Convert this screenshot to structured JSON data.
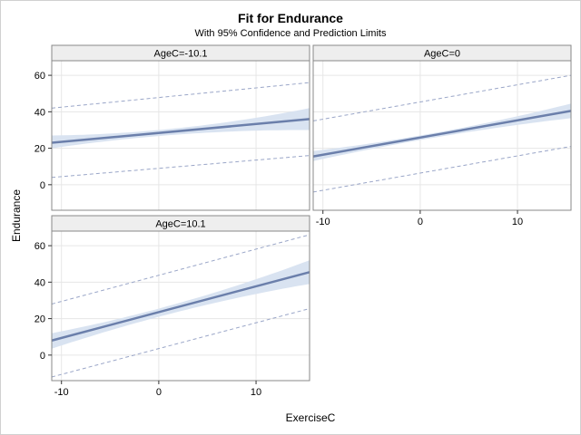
{
  "chart_data": {
    "type": "line",
    "title": "Fit for Endurance",
    "subtitle": "With 95% Confidence and Prediction Limits",
    "xlabel": "ExerciseC",
    "ylabel": "Endurance",
    "xlim": [
      -11,
      15.5
    ],
    "ylim": [
      -14,
      68
    ],
    "x_ticks": [
      -10,
      0,
      10
    ],
    "y_ticks": [
      0,
      20,
      40,
      60
    ],
    "grid": true,
    "colors": {
      "fit": "#6b7fab",
      "confidence_band": "#d9e3f1",
      "prediction_limit": "#9aa6c8",
      "grid": "#e6e6e6",
      "frame": "#888888",
      "panel_header": "#eeeeee"
    },
    "panels": [
      {
        "label": "AgeC=-10.1",
        "fit": {
          "x": [
            -11,
            15.5
          ],
          "y": [
            23,
            36
          ]
        },
        "confidence_lower": {
          "x": [
            -11,
            0,
            15.5
          ],
          "y": [
            20,
            26.7,
            30
          ]
        },
        "confidence_upper": {
          "x": [
            -11,
            0,
            15.5
          ],
          "y": [
            27,
            30,
            42
          ]
        },
        "prediction_lower": {
          "x": [
            -11,
            15.5
          ],
          "y": [
            4,
            16
          ]
        },
        "prediction_upper": {
          "x": [
            -11,
            15.5
          ],
          "y": [
            42,
            56
          ]
        }
      },
      {
        "label": "AgeC=0",
        "fit": {
          "x": [
            -11,
            15.5
          ],
          "y": [
            15.5,
            40.5
          ]
        },
        "confidence_lower": {
          "x": [
            -11,
            0,
            15.5
          ],
          "y": [
            13,
            24.5,
            36.5
          ]
        },
        "confidence_upper": {
          "x": [
            -11,
            0,
            15.5
          ],
          "y": [
            18.5,
            27,
            44.5
          ]
        },
        "prediction_lower": {
          "x": [
            -11,
            15.5
          ],
          "y": [
            -4,
            21
          ]
        },
        "prediction_upper": {
          "x": [
            -11,
            15.5
          ],
          "y": [
            35,
            60
          ]
        }
      },
      {
        "label": "AgeC=10.1",
        "fit": {
          "x": [
            -11,
            15.5
          ],
          "y": [
            8,
            45.5
          ]
        },
        "confidence_lower": {
          "x": [
            -11,
            0,
            15.5
          ],
          "y": [
            3.5,
            21,
            39
          ]
        },
        "confidence_upper": {
          "x": [
            -11,
            0,
            15.5
          ],
          "y": [
            12,
            25.5,
            52
          ]
        },
        "prediction_lower": {
          "x": [
            -11,
            15.5
          ],
          "y": [
            -12,
            25.5
          ]
        },
        "prediction_upper": {
          "x": [
            -11,
            15.5
          ],
          "y": [
            28,
            66
          ]
        }
      }
    ]
  }
}
